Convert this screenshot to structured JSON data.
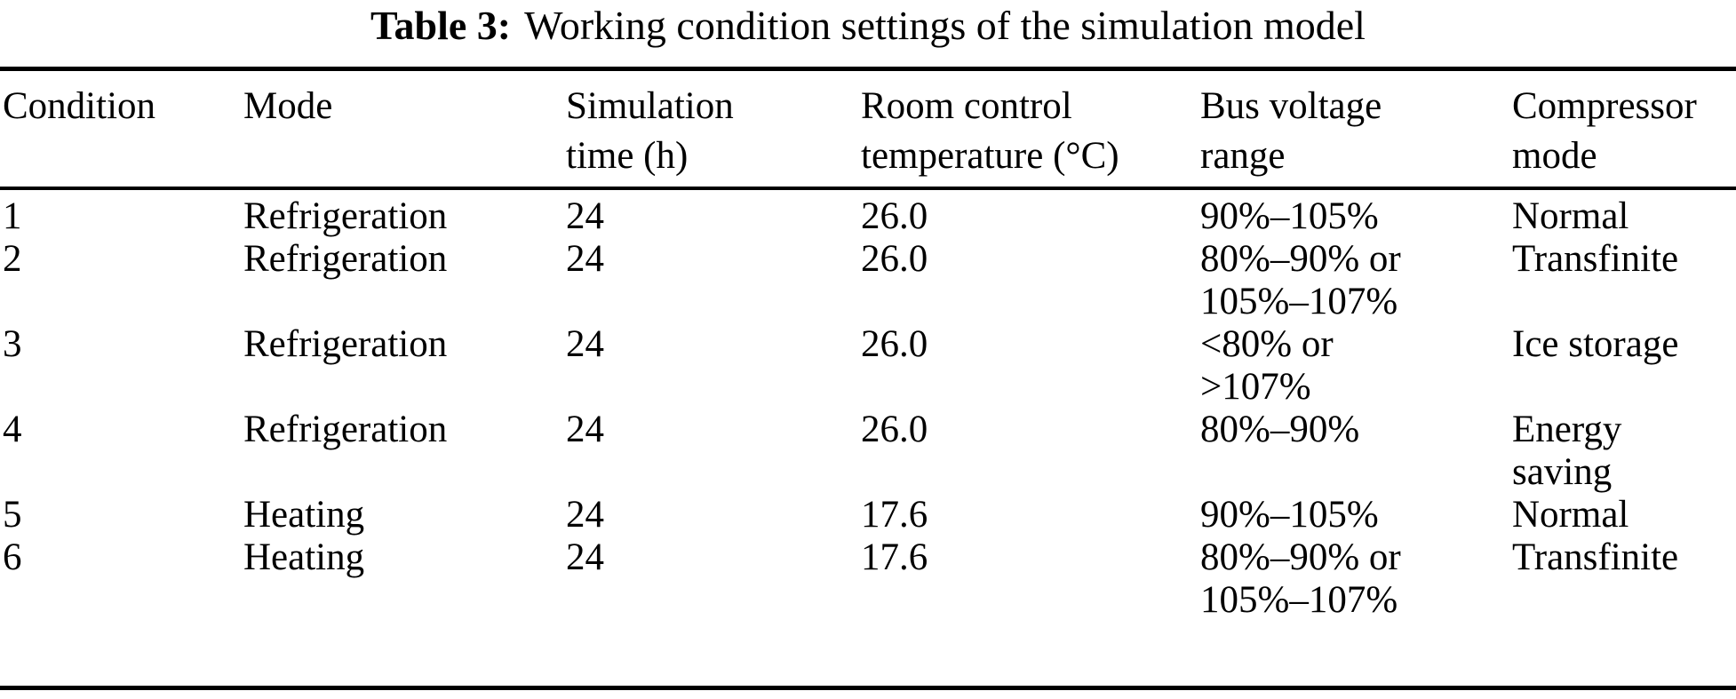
{
  "caption": {
    "label": "Table 3:",
    "text": "Working condition settings of the simulation model"
  },
  "table": {
    "headers": [
      "Condition",
      "Mode",
      "Simulation\ntime (h)",
      "Room control\ntemperature (°C)",
      "Bus voltage\nrange",
      "Compressor\nmode"
    ],
    "rows": [
      {
        "condition": "1",
        "mode": "Refrigeration",
        "sim_time": "24",
        "room_temp": "26.0",
        "bus_voltage": "90%–105%",
        "compressor": "Normal"
      },
      {
        "condition": "2",
        "mode": "Refrigeration",
        "sim_time": "24",
        "room_temp": "26.0",
        "bus_voltage": "80%–90% or\n105%–107%",
        "compressor": "Transfinite"
      },
      {
        "condition": "3",
        "mode": "Refrigeration",
        "sim_time": "24",
        "room_temp": "26.0",
        "bus_voltage": "<80% or\n>107%",
        "compressor": "Ice storage"
      },
      {
        "condition": "4",
        "mode": "Refrigeration",
        "sim_time": "24",
        "room_temp": "26.0",
        "bus_voltage": "80%–90%",
        "compressor": "Energy\nsaving"
      },
      {
        "condition": "5",
        "mode": "Heating",
        "sim_time": "24",
        "room_temp": "17.6",
        "bus_voltage": "90%–105%",
        "compressor": "Normal"
      },
      {
        "condition": "6",
        "mode": "Heating",
        "sim_time": "24",
        "room_temp": "17.6",
        "bus_voltage": "80%–90% or\n105%–107%",
        "compressor": "Transfinite"
      }
    ]
  }
}
